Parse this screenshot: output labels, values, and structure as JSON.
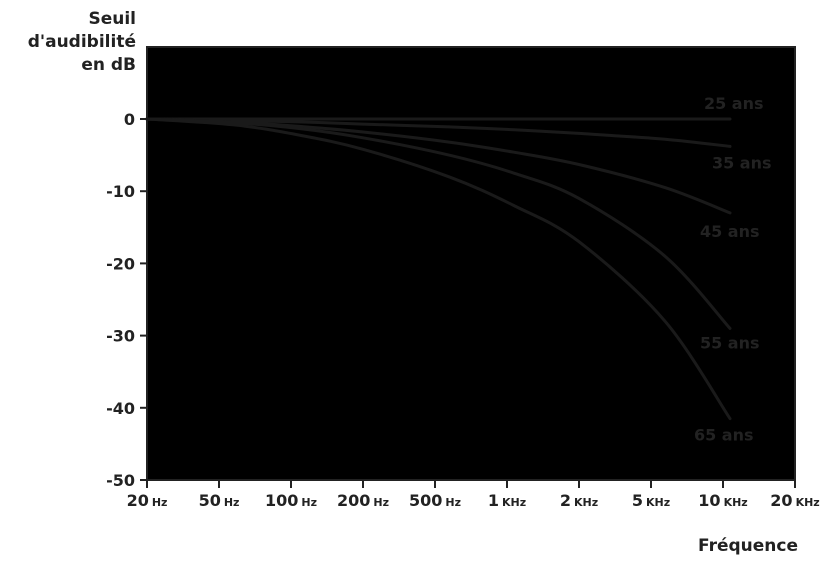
{
  "chart_data": {
    "type": "line",
    "ylabel": [
      "Seuil",
      "d'audibilité",
      "en dB"
    ],
    "xlabel": "Fréquence",
    "x_ticks": [
      {
        "num": "20",
        "unit": "Hz"
      },
      {
        "num": "50",
        "unit": "Hz"
      },
      {
        "num": "100",
        "unit": "Hz"
      },
      {
        "num": "200",
        "unit": "Hz"
      },
      {
        "num": "500",
        "unit": "Hz"
      },
      {
        "num": "1",
        "unit": "KHz"
      },
      {
        "num": "2",
        "unit": "KHz"
      },
      {
        "num": "5",
        "unit": "KHz"
      },
      {
        "num": "10",
        "unit": "KHz"
      },
      {
        "num": "20",
        "unit": "KHz"
      }
    ],
    "y_ticks": [
      "0",
      "-10",
      "-20",
      "-30",
      "-40",
      "-50"
    ],
    "ylim": [
      -50,
      0
    ],
    "x_scale": "log",
    "grid": false,
    "background": "color gradient, yellow (low frequency, low threshold) to blue (high frequency, high threshold)",
    "series": [
      {
        "name": "25 ans",
        "x": [
          20,
          50,
          100,
          200,
          500,
          1000,
          2000,
          5000,
          10000
        ],
        "y": [
          0,
          0,
          0,
          0,
          0,
          0,
          0,
          0,
          0
        ]
      },
      {
        "name": "35 ans",
        "x": [
          20,
          50,
          100,
          200,
          500,
          1000,
          2000,
          5000,
          10000
        ],
        "y": [
          0,
          -0.2,
          -0.4,
          -0.7,
          -1.1,
          -1.5,
          -2,
          -2.8,
          -3.8
        ]
      },
      {
        "name": "45 ans",
        "x": [
          20,
          50,
          100,
          200,
          500,
          1000,
          2000,
          5000,
          10000
        ],
        "y": [
          0,
          -0.4,
          -1,
          -1.8,
          -3.2,
          -4.6,
          -6.3,
          -9.5,
          -13
        ]
      },
      {
        "name": "55 ans",
        "x": [
          20,
          50,
          100,
          200,
          500,
          1000,
          2000,
          5000,
          10000
        ],
        "y": [
          0,
          -0.5,
          -1.3,
          -2.6,
          -5,
          -7.5,
          -11,
          -19,
          -29
        ]
      },
      {
        "name": "65 ans",
        "x": [
          20,
          50,
          100,
          200,
          500,
          1000,
          2000,
          5000,
          10000
        ],
        "y": [
          0,
          -0.8,
          -2.2,
          -4.2,
          -8,
          -12,
          -17,
          -28,
          -41.5
        ]
      }
    ],
    "line_color": "#1a1a1a"
  }
}
